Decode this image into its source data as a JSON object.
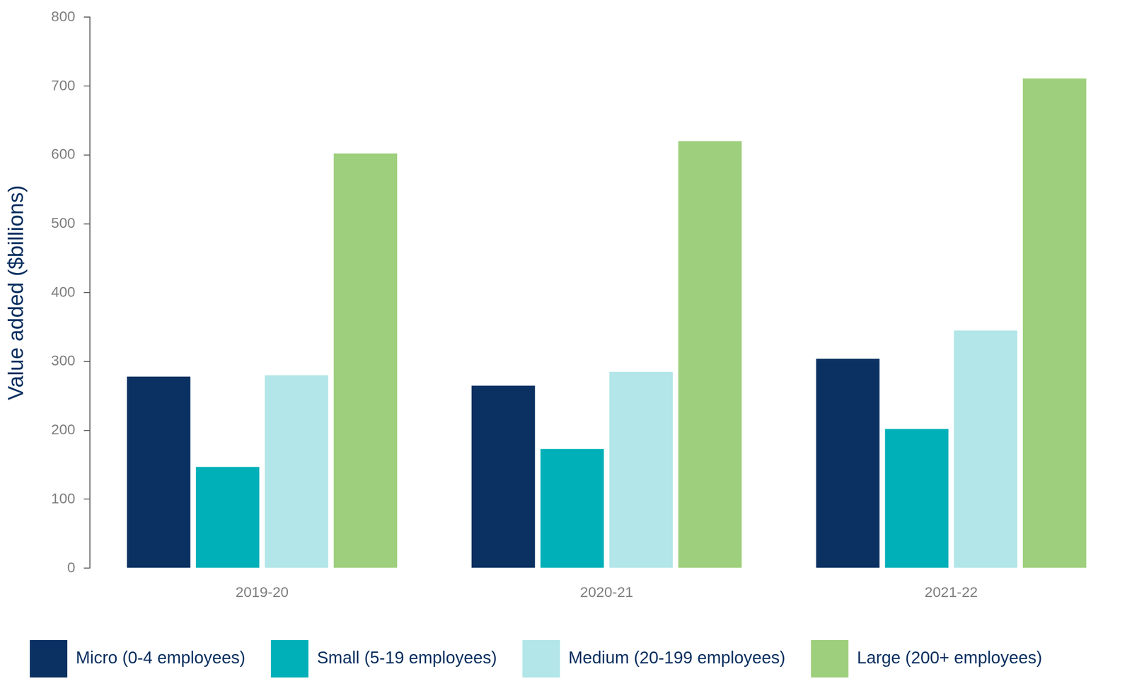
{
  "chart_data": {
    "type": "bar",
    "y_label": "Value added ($billions)",
    "categories": [
      "2019-20",
      "2020-21",
      "2021-22"
    ],
    "series": [
      {
        "name": "Micro (0-4 employees)",
        "color": "#0a3161",
        "values": [
          278,
          265,
          304
        ]
      },
      {
        "name": "Small (5-19 employees)",
        "color": "#00b0b9",
        "values": [
          147,
          173,
          202
        ]
      },
      {
        "name": "Medium (20-199 employees)",
        "color": "#b2e6e8",
        "values": [
          280,
          285,
          345
        ]
      },
      {
        "name": "Large (200+ employees)",
        "color": "#9ecf7c",
        "values": [
          602,
          620,
          711
        ]
      }
    ],
    "ylim": [
      0,
      800
    ],
    "yticks": [
      0,
      100,
      200,
      300,
      400,
      500,
      600,
      700,
      800
    ],
    "grid": false,
    "legend": "bottom"
  }
}
